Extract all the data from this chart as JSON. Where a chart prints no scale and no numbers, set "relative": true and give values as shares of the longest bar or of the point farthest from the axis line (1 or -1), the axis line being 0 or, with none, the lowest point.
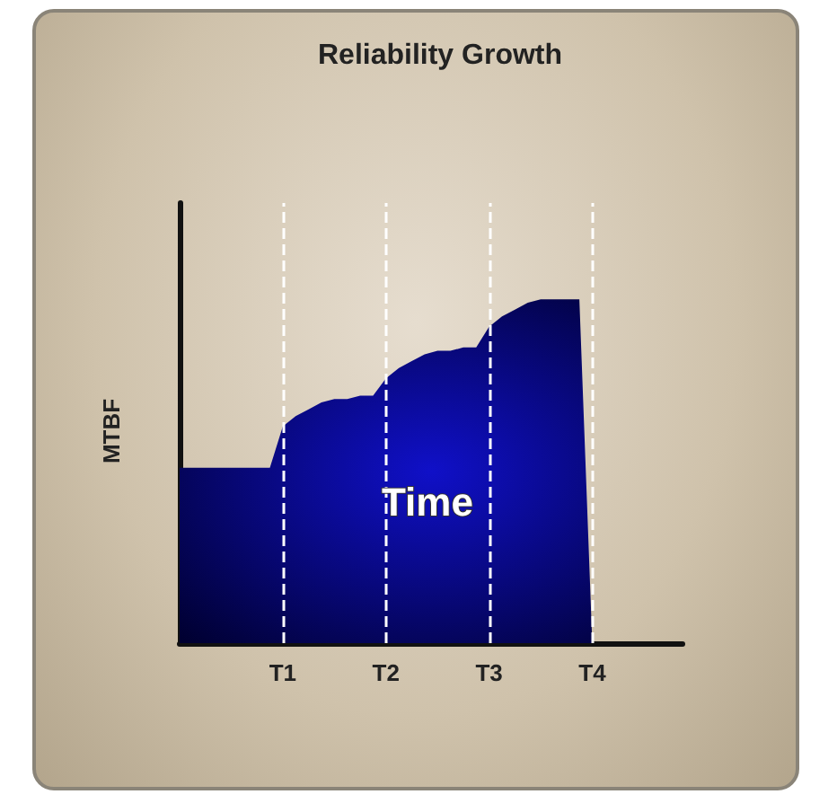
{
  "chart_data": {
    "type": "area",
    "title": "Reliability Growth",
    "xlabel": "Time",
    "ylabel": "MTBF",
    "relative": true,
    "categories": [
      null,
      null,
      null,
      null,
      null,
      null,
      null,
      null,
      "T1",
      null,
      null,
      null,
      null,
      null,
      null,
      null,
      "T2",
      null,
      null,
      null,
      null,
      null,
      null,
      null,
      "T3",
      null,
      null,
      null,
      null,
      null,
      null,
      null,
      "T4",
      null,
      null,
      null,
      null,
      null,
      null,
      null
    ],
    "series": [
      {
        "color": "#1010c8",
        "values": [
          0.51,
          0.51,
          0.51,
          0.51,
          0.51,
          0.51,
          0.51,
          0.51,
          0.63,
          0.66,
          0.68,
          0.7,
          0.71,
          0.71,
          0.72,
          0.72,
          0.77,
          0.8,
          0.82,
          0.84,
          0.85,
          0.85,
          0.86,
          0.86,
          0.92,
          0.95,
          0.97,
          0.99,
          1.0,
          1.0,
          1.0,
          1.0,
          0,
          0,
          0,
          0,
          0,
          0,
          0,
          0
        ]
      }
    ],
    "ref_lines": [
      {
        "axis": "x",
        "value": "T1",
        "color": "#ffffff",
        "line_style": "dashed"
      },
      {
        "axis": "x",
        "value": "T2",
        "color": "#ffffff",
        "line_style": "dashed"
      },
      {
        "axis": "x",
        "value": "T3",
        "color": "#ffffff",
        "line_style": "dashed"
      },
      {
        "axis": "x",
        "value": "T4",
        "color": "#ffffff",
        "line_style": "dashed"
      }
    ],
    "grid": false
  }
}
